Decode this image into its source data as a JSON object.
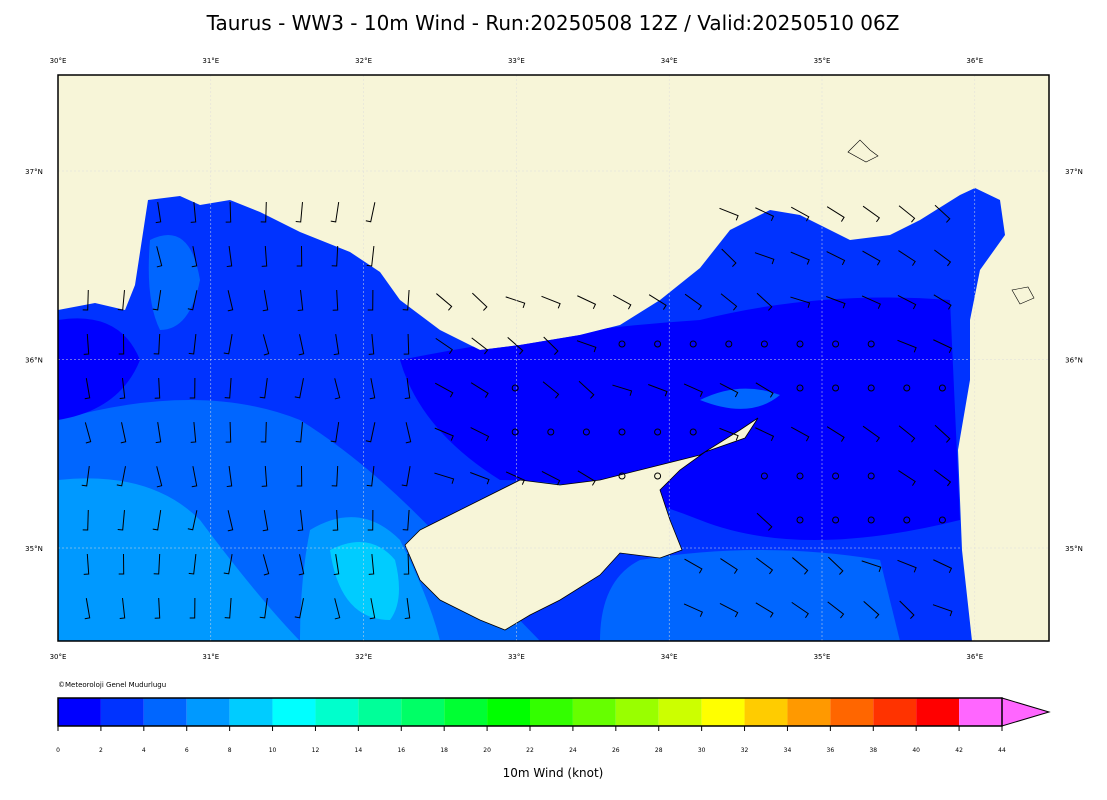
{
  "title": "Taurus - WW3 - 10m Wind - Run:20250508 12Z / Valid:20250510 06Z",
  "map": {
    "lon_labels": [
      "30°E",
      "31°E",
      "32°E",
      "33°E",
      "34°E",
      "35°E",
      "36°E"
    ],
    "lat_labels": [
      "37°N",
      "36°N",
      "35°N"
    ],
    "credit": "©Meteoroloji Genel Mudurlugu",
    "land_color": "#f7f5d8"
  },
  "colorbar": {
    "label": "10m Wind (knot)",
    "ticks": [
      0,
      2,
      4,
      6,
      8,
      10,
      12,
      14,
      16,
      18,
      20,
      22,
      24,
      26,
      28,
      30,
      32,
      34,
      36,
      38,
      40,
      42,
      44
    ],
    "colors": [
      "#0000ff",
      "#0033ff",
      "#0066ff",
      "#0099ff",
      "#00ccff",
      "#00ffff",
      "#00ffcc",
      "#00ff99",
      "#00ff66",
      "#00ff33",
      "#00ff00",
      "#33ff00",
      "#66ff00",
      "#99ff00",
      "#ccff00",
      "#ffff00",
      "#ffcc00",
      "#ff9900",
      "#ff6600",
      "#ff3300",
      "#ff0000",
      "#ff66ff"
    ],
    "extend": "max"
  }
}
